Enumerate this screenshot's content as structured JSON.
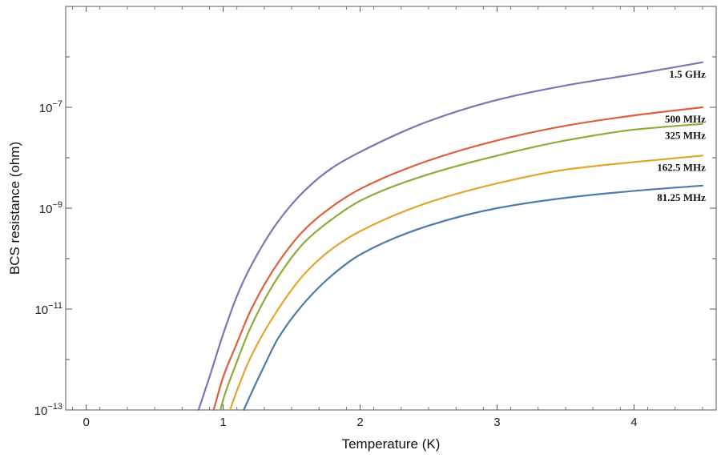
{
  "chart_data": {
    "type": "line",
    "title": "",
    "xlabel": "Temperature (K)",
    "ylabel": "BCS resistance (ohm)",
    "xlim": [
      -0.15,
      4.6
    ],
    "ylim": [
      1e-13,
      1e-05
    ],
    "yscale": "log",
    "grid": false,
    "x_ticks": [
      0,
      1,
      2,
      3,
      4
    ],
    "x_tick_labels": [
      "0",
      "1",
      "2",
      "3",
      "4"
    ],
    "y_ticks": [
      1e-13,
      1e-11,
      1e-09,
      1e-07
    ],
    "y_tick_labels": [
      {
        "base": "10",
        "exp": "−13"
      },
      {
        "base": "10",
        "exp": "−11"
      },
      {
        "base": "10",
        "exp": "−9"
      },
      {
        "base": "10",
        "exp": "−7"
      }
    ],
    "series": [
      {
        "name": "1.5 GHz",
        "color": "#8172b3",
        "x": [
          0.82,
          0.9,
          1.0,
          1.1,
          1.2,
          1.4,
          1.6,
          1.8,
          2.0,
          2.5,
          3.0,
          3.5,
          4.0,
          4.5
        ],
        "y": [
          1e-13,
          4.5e-13,
          3.2e-12,
          1.8e-11,
          6.9e-11,
          5.4e-10,
          2.3e-09,
          6.4e-09,
          1.3e-08,
          5.3e-08,
          1.4e-07,
          2.7e-07,
          4.5e-07,
          7.8e-07
        ]
      },
      {
        "name": "500 MHz",
        "color": "#dd5f3b",
        "x": [
          0.93,
          1.0,
          1.1,
          1.2,
          1.4,
          1.6,
          1.8,
          2.0,
          2.5,
          3.0,
          3.5,
          4.0,
          4.5
        ],
        "y": [
          1e-13,
          4.5e-13,
          2.1e-12,
          9.3e-12,
          8.2e-11,
          3.9e-10,
          1.1e-09,
          2.4e-09,
          8.8e-09,
          2.2e-08,
          4.3e-08,
          6.9e-08,
          1e-07
        ]
      },
      {
        "name": "325 MHz",
        "color": "#8aad3a",
        "x": [
          0.98,
          1.0,
          1.1,
          1.2,
          1.4,
          1.6,
          1.8,
          2.0,
          2.5,
          3.0,
          3.5,
          4.0,
          4.5
        ],
        "y": [
          1e-13,
          1.6e-13,
          9e-13,
          4.3e-12,
          4.3e-11,
          2.2e-10,
          6.2e-10,
          1.4e-09,
          4.7e-09,
          1.1e-08,
          2.2e-08,
          3.6e-08,
          4.7e-08
        ]
      },
      {
        "name": "162.5 MHz",
        "color": "#e2a530",
        "x": [
          1.05,
          1.1,
          1.2,
          1.4,
          1.6,
          1.8,
          2.0,
          2.5,
          3.0,
          3.5,
          4.0,
          4.5
        ],
        "y": [
          1e-13,
          2.4e-13,
          1.1e-12,
          9.8e-12,
          5.2e-11,
          1.6e-10,
          3.5e-10,
          1.3e-09,
          3.1e-09,
          5.8e-09,
          8.2e-09,
          1.1e-08
        ]
      },
      {
        "name": "81.25 MHz",
        "color": "#4e7ba7",
        "x": [
          1.15,
          1.2,
          1.3,
          1.4,
          1.6,
          1.8,
          2.0,
          2.5,
          3.0,
          3.5,
          4.0,
          4.5
        ],
        "y": [
          1e-13,
          2e-13,
          7.5e-13,
          2.6e-12,
          1.4e-11,
          4.8e-11,
          1.2e-10,
          4.5e-10,
          1e-09,
          1.6e-09,
          2.2e-09,
          2.8e-09
        ]
      }
    ]
  }
}
